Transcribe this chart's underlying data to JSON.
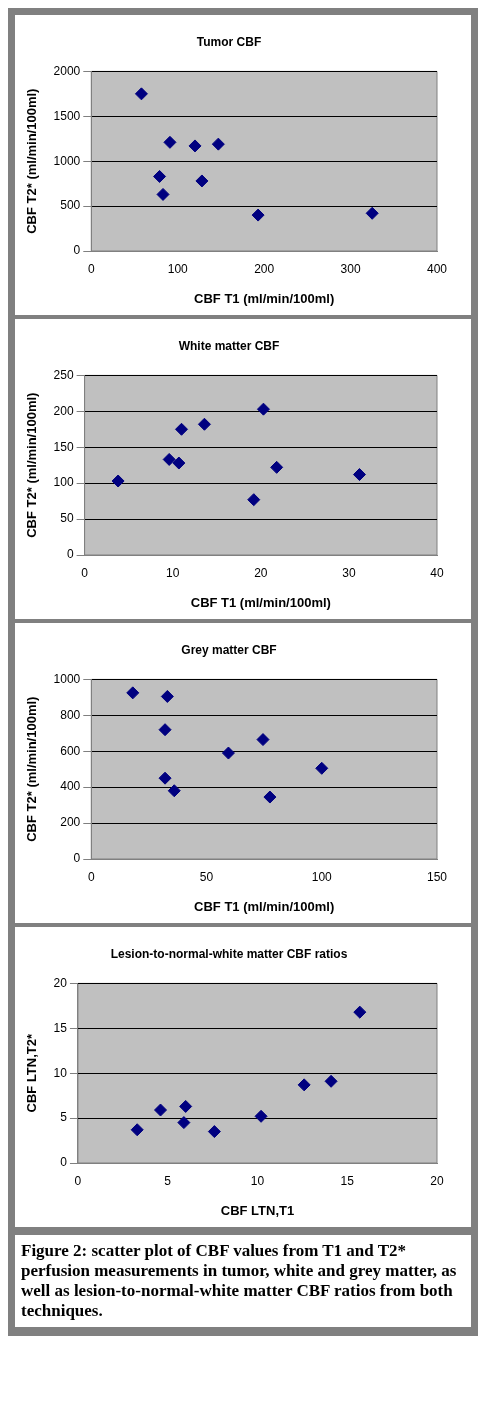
{
  "chart_data": [
    {
      "type": "scatter",
      "title": "Tumor CBF",
      "xlabel": "CBF T1 (ml/min/100ml)",
      "ylabel": "CBF T2* (ml/min/100ml)",
      "x": [
        58,
        91,
        120,
        147,
        79,
        128,
        83,
        193,
        325
      ],
      "values": [
        1750,
        1210,
        1170,
        1190,
        830,
        780,
        630,
        400,
        420
      ],
      "color": "#000080",
      "marker": "diamond",
      "grid": "y",
      "xlim": [
        0,
        400
      ],
      "xticks": [
        0,
        100,
        200,
        300,
        400
      ],
      "ylim": [
        0,
        2000
      ],
      "yticks": [
        0,
        500,
        1000,
        1500,
        2000
      ]
    },
    {
      "type": "scatter",
      "title": "White matter CBF",
      "xlabel": "CBF T1 (ml/min/100ml)",
      "ylabel": "CBF T2* (ml/min/100ml)",
      "x": [
        3.8,
        9.6,
        10.7,
        11.0,
        13.6,
        20.3,
        19.2,
        21.8,
        31.2
      ],
      "values": [
        103,
        133,
        128,
        175,
        182,
        203,
        77,
        122,
        112
      ],
      "color": "#000080",
      "marker": "diamond",
      "grid": "y",
      "xlim": [
        0,
        40
      ],
      "xticks": [
        0,
        10,
        20,
        30,
        40
      ],
      "ylim": [
        0,
        250
      ],
      "yticks": [
        0,
        50,
        100,
        150,
        200,
        250
      ]
    },
    {
      "type": "scatter",
      "title": "Grey matter CBF",
      "xlabel": "CBF T1 (ml/min/100ml)",
      "ylabel": "CBF T2* (ml/min/100ml)",
      "x": [
        18,
        33,
        32,
        32,
        36,
        59.5,
        74.5,
        77.5,
        100
      ],
      "values": [
        925,
        905,
        720,
        450,
        380,
        590,
        665,
        345,
        505
      ],
      "color": "#000080",
      "marker": "diamond",
      "grid": "y",
      "xlim": [
        0,
        150
      ],
      "xticks": [
        0,
        50,
        100,
        150
      ],
      "ylim": [
        0,
        1000
      ],
      "yticks": [
        0,
        200,
        400,
        600,
        800,
        1000
      ]
    },
    {
      "type": "scatter",
      "title": "Lesion-to-normal-white matter CBF ratios",
      "xlabel": "CBF LTN,T1",
      "ylabel": "CBF LTN,T2*",
      "x": [
        3.3,
        4.6,
        5.9,
        6.0,
        7.6,
        10.2,
        12.6,
        14.1,
        15.7
      ],
      "values": [
        3.7,
        5.9,
        4.5,
        6.3,
        3.5,
        5.2,
        8.7,
        9.1,
        16.8
      ],
      "color": "#000080",
      "marker": "diamond",
      "grid": "y",
      "xlim": [
        0,
        20
      ],
      "xticks": [
        0,
        5,
        10,
        15,
        20
      ],
      "ylim": [
        0,
        20
      ],
      "yticks": [
        0,
        5,
        10,
        15,
        20
      ],
      "annotations": [
        "Figure 2: scatter plot of CBF values  from T1 and T2* perfusion measurements in tumor, white and grey matter, as well as lesion-to-normal-white matter CBF ratios from both techniques."
      ]
    }
  ]
}
